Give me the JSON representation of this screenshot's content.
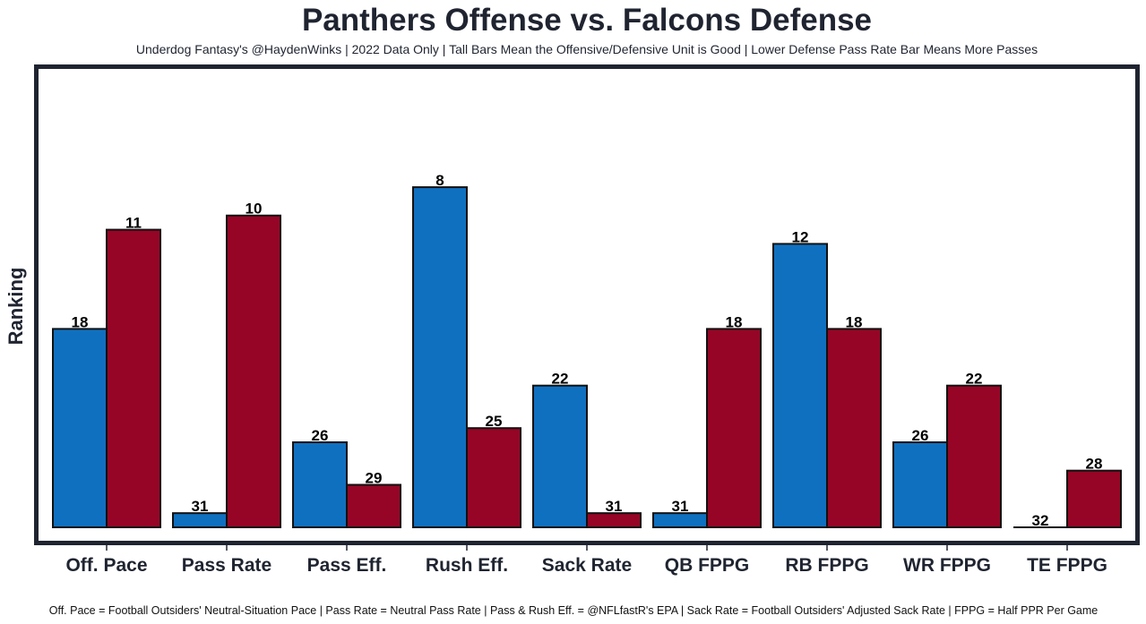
{
  "chart_data": {
    "type": "bar",
    "title": "Panthers Offense vs. Falcons Defense",
    "subtitle": "Underdog Fantasy's @HaydenWinks | 2022 Data Only | Tall Bars Mean the Offensive/Defensive Unit is Good | Lower Defense Pass Rate Bar Means More Passes",
    "ylabel": "Ranking",
    "xlabel": "",
    "footnote": "Off. Pace = Football Outsiders' Neutral-Situation Pace | Pass Rate = Neutral Pass Rate | Pass & Rush Eff. = @NFLfastR's EPA | Sack Rate = Football Outsiders' Adjusted Sack Rate | FPPG = Half PPR Per Game",
    "categories": [
      "Off. Pace",
      "Pass Rate",
      "Pass Eff.",
      "Rush Eff.",
      "Sack Rate",
      "QB FPPG",
      "RB FPPG",
      "WR FPPG",
      "TE FPPG"
    ],
    "bar_height_rule": "bar height = 32 - ranking",
    "ylim": [
      0,
      32.5
    ],
    "grid": false,
    "y_ticks_shown": false,
    "series": [
      {
        "key": "offense",
        "color": "#1070c0",
        "values": [
          18,
          31,
          26,
          8,
          22,
          31,
          12,
          26,
          32
        ]
      },
      {
        "key": "defense",
        "color": "#960525",
        "values": [
          11,
          10,
          29,
          25,
          31,
          18,
          18,
          22,
          28
        ]
      }
    ],
    "frame_color": "#1f2430"
  }
}
